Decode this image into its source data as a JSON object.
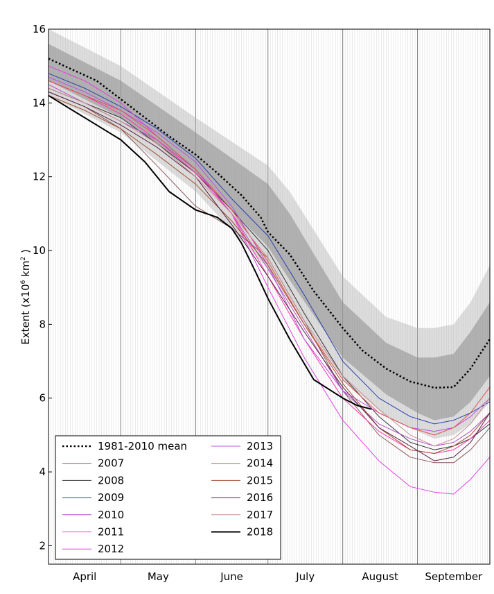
{
  "chart_data": {
    "type": "line",
    "ylabel": "Extent (x10⁶ km²)",
    "ylabel_main": "Extent (x10",
    "ylabel_exp": "6",
    "ylabel_unit": " km",
    "ylabel_unit_exp": "2",
    "ylabel_close": " )",
    "ylim": [
      1.5,
      16
    ],
    "xlim": [
      0,
      183
    ],
    "yticks": [
      "2",
      "4",
      "6",
      "8",
      "10",
      "12",
      "14",
      "16"
    ],
    "yticks_values": [
      2,
      4,
      6,
      8,
      10,
      12,
      14,
      16
    ],
    "months": [
      {
        "label": "April",
        "start": 0,
        "end": 30
      },
      {
        "label": "May",
        "start": 30,
        "end": 61
      },
      {
        "label": "June",
        "start": 61,
        "end": 91
      },
      {
        "label": "July",
        "start": 91,
        "end": 122
      },
      {
        "label": "August",
        "start": 122,
        "end": 153
      },
      {
        "label": "September",
        "start": 153,
        "end": 183
      }
    ],
    "grid": "daily vertical lines",
    "legend_location": "lower-left",
    "mean_line": {
      "name": "1981-2010 mean",
      "style": "dotted",
      "color": "#000000",
      "x": [
        0,
        10,
        20,
        30,
        40,
        50,
        61,
        70,
        80,
        88,
        91,
        100,
        110,
        122,
        130,
        140,
        150,
        160,
        168,
        175,
        183
      ],
      "y": [
        15.2,
        14.9,
        14.6,
        14.1,
        13.6,
        13.1,
        12.6,
        12.1,
        11.5,
        10.9,
        10.5,
        9.9,
        8.9,
        7.9,
        7.3,
        6.8,
        6.45,
        6.28,
        6.3,
        6.8,
        7.6
      ]
    },
    "band_inner": {
      "x": [
        0,
        30,
        61,
        91,
        100,
        122,
        140,
        153,
        160,
        168,
        175,
        183
      ],
      "upper": [
        15.6,
        14.6,
        13.2,
        11.8,
        11.0,
        8.6,
        7.5,
        7.1,
        7.1,
        7.2,
        7.8,
        8.6
      ],
      "lower": [
        14.6,
        13.6,
        12.1,
        10.1,
        9.2,
        7.1,
        6.1,
        5.6,
        5.4,
        5.5,
        5.9,
        6.6
      ]
    },
    "band_outer": {
      "x": [
        0,
        30,
        61,
        91,
        100,
        122,
        140,
        153,
        160,
        168,
        175,
        183
      ],
      "upper": [
        16.0,
        15.0,
        13.6,
        12.3,
        11.6,
        9.3,
        8.2,
        7.9,
        7.9,
        8.0,
        8.6,
        9.6
      ],
      "lower": [
        14.2,
        13.2,
        11.6,
        9.5,
        8.6,
        6.5,
        5.5,
        5.1,
        4.9,
        5.0,
        5.3,
        5.9
      ]
    },
    "series": [
      {
        "name": "2007",
        "color": "#8c5a5a",
        "width": 1,
        "x": [
          0,
          15,
          30,
          45,
          61,
          76,
          91,
          106,
          122,
          137,
          150,
          160,
          168,
          175,
          183
        ],
        "y": [
          14.3,
          13.9,
          13.3,
          12.3,
          11.2,
          10.6,
          9.8,
          8.1,
          6.2,
          5.0,
          4.4,
          4.25,
          4.25,
          4.6,
          5.2
        ]
      },
      {
        "name": "2008",
        "color": "#333333",
        "width": 1,
        "x": [
          0,
          15,
          30,
          45,
          61,
          76,
          91,
          106,
          122,
          137,
          150,
          160,
          168,
          175,
          183
        ],
        "y": [
          14.4,
          14.0,
          13.6,
          12.9,
          12.1,
          11.1,
          10.0,
          8.3,
          6.6,
          5.5,
          4.8,
          4.6,
          4.7,
          4.9,
          5.3
        ]
      },
      {
        "name": "2009",
        "color": "#2a3fa8",
        "width": 1,
        "x": [
          0,
          15,
          30,
          45,
          61,
          76,
          91,
          106,
          122,
          137,
          150,
          160,
          168,
          175,
          183
        ],
        "y": [
          14.8,
          14.4,
          13.9,
          13.3,
          12.5,
          11.4,
          10.4,
          8.8,
          7.0,
          6.0,
          5.5,
          5.3,
          5.4,
          5.6,
          5.9
        ]
      },
      {
        "name": "2010",
        "color": "#b04fc2",
        "width": 1,
        "x": [
          0,
          15,
          30,
          45,
          61,
          76,
          91,
          106,
          122,
          137,
          150,
          160,
          168,
          175,
          183
        ],
        "y": [
          14.5,
          14.0,
          13.5,
          13.0,
          12.2,
          11.0,
          9.5,
          7.9,
          6.2,
          5.3,
          4.9,
          4.7,
          4.8,
          5.1,
          5.6
        ]
      },
      {
        "name": "2011",
        "color": "#ff33aa",
        "width": 1,
        "x": [
          0,
          15,
          30,
          45,
          61,
          76,
          91,
          106,
          122,
          137,
          150,
          160,
          168,
          175,
          183
        ],
        "y": [
          14.6,
          14.2,
          13.7,
          13.0,
          12.1,
          11.0,
          9.3,
          7.6,
          6.0,
          5.1,
          4.6,
          4.5,
          4.6,
          4.9,
          5.4
        ]
      },
      {
        "name": "2012",
        "color": "#e040e0",
        "width": 1,
        "x": [
          0,
          15,
          30,
          45,
          61,
          76,
          91,
          106,
          122,
          137,
          150,
          160,
          168,
          175,
          183
        ],
        "y": [
          15.0,
          14.6,
          14.0,
          13.1,
          12.2,
          11.0,
          9.0,
          7.1,
          5.4,
          4.3,
          3.6,
          3.45,
          3.4,
          3.8,
          4.4
        ]
      },
      {
        "name": "2013",
        "color": "#c050e0",
        "width": 1,
        "x": [
          0,
          15,
          30,
          45,
          61,
          76,
          91,
          106,
          122,
          137,
          150,
          160,
          168,
          175,
          183
        ],
        "y": [
          14.7,
          14.3,
          13.8,
          13.2,
          12.4,
          11.2,
          9.6,
          7.6,
          6.2,
          5.6,
          5.2,
          5.1,
          5.2,
          5.5,
          6.0
        ]
      },
      {
        "name": "2014",
        "color": "#e05050",
        "width": 1,
        "x": [
          0,
          15,
          30,
          45,
          61,
          76,
          91,
          106,
          122,
          137,
          150,
          160,
          168,
          175,
          183
        ],
        "y": [
          14.6,
          14.2,
          13.8,
          13.1,
          12.2,
          11.1,
          9.7,
          8.0,
          6.5,
          5.6,
          5.2,
          5.0,
          5.2,
          5.6,
          6.3
        ]
      },
      {
        "name": "2015",
        "color": "#a05030",
        "width": 1,
        "x": [
          0,
          15,
          30,
          45,
          61,
          76,
          91,
          106,
          122,
          137,
          150,
          160,
          168,
          175,
          183
        ],
        "y": [
          14.2,
          13.8,
          13.3,
          12.6,
          11.8,
          10.8,
          9.6,
          8.0,
          6.4,
          5.2,
          4.6,
          4.5,
          4.7,
          5.0,
          5.6
        ]
      },
      {
        "name": "2016",
        "color": "#552244",
        "width": 1,
        "x": [
          0,
          15,
          30,
          45,
          61,
          76,
          91,
          106,
          122,
          137,
          150,
          160,
          168,
          175,
          183
        ],
        "y": [
          14.3,
          13.9,
          13.4,
          12.8,
          12.0,
          10.7,
          9.3,
          7.8,
          6.3,
          5.2,
          4.7,
          4.3,
          4.4,
          4.8,
          5.6
        ]
      },
      {
        "name": "2017",
        "color": "#c89090",
        "width": 1,
        "x": [
          0,
          15,
          30,
          45,
          61,
          76,
          91,
          106,
          122,
          137,
          150,
          160,
          168,
          175,
          183
        ],
        "y": [
          14.4,
          14.0,
          13.5,
          12.9,
          12.0,
          11.0,
          9.8,
          8.1,
          6.6,
          5.7,
          5.0,
          4.7,
          4.9,
          5.3,
          6.0
        ]
      },
      {
        "name": "2018",
        "color": "#000000",
        "width": 2,
        "x": [
          0,
          10,
          20,
          30,
          40,
          50,
          61,
          70,
          76,
          80,
          86,
          91,
          100,
          110,
          122,
          128,
          134
        ],
        "y": [
          14.2,
          13.8,
          13.4,
          13.0,
          12.4,
          11.6,
          11.1,
          10.9,
          10.6,
          10.2,
          9.4,
          8.7,
          7.6,
          6.5,
          6.0,
          5.8,
          5.7
        ]
      }
    ]
  }
}
